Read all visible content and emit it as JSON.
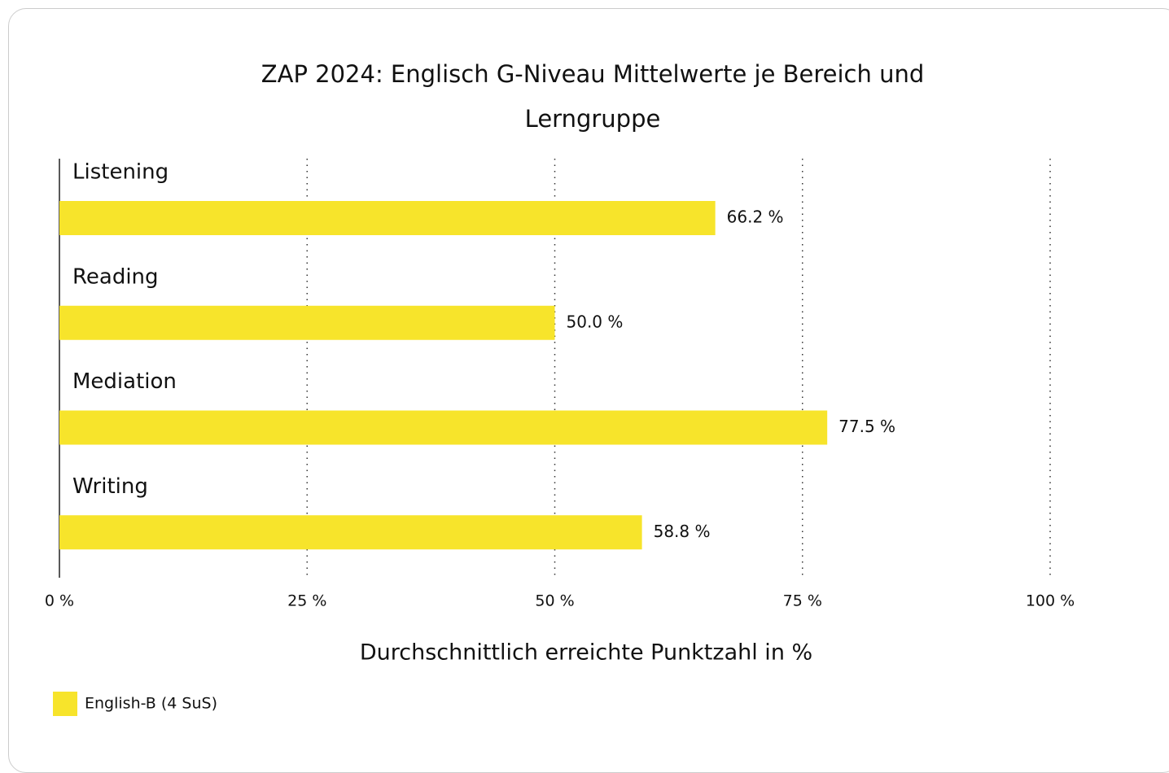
{
  "chart_data": {
    "type": "bar",
    "orientation": "horizontal",
    "title": "ZAP 2024: Englisch G-Niveau Mittelwerte je Bereich und Lerngruppe",
    "categories": [
      "Listening",
      "Reading",
      "Mediation",
      "Writing"
    ],
    "series": [
      {
        "name": "English-B (4 SuS)",
        "color": "#f7e42b",
        "values": [
          66.2,
          50.0,
          77.5,
          58.8
        ],
        "value_labels": [
          "66.2 %",
          "50.0 %",
          "77.5 %",
          "58.8 %"
        ]
      }
    ],
    "xlim": [
      0,
      100
    ],
    "xticks": [
      {
        "value": 0,
        "label": "0 %"
      },
      {
        "value": 25,
        "label": "25 %"
      },
      {
        "value": 50,
        "label": "50 %"
      },
      {
        "value": 75,
        "label": "75 %"
      },
      {
        "value": 100,
        "label": "100 %"
      }
    ],
    "xlabel": "Durchschnittlich erreichte Punktzahl in %",
    "grid": true,
    "legend": "bottom-left"
  }
}
